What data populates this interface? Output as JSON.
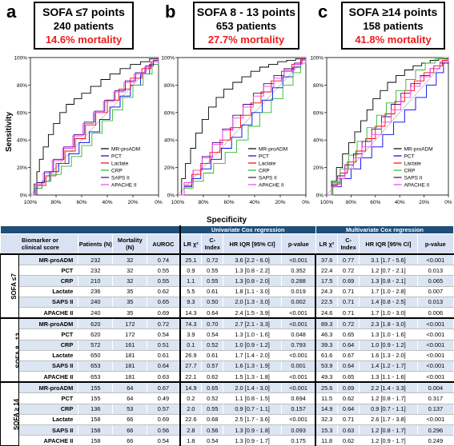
{
  "panels": [
    {
      "letter": "a",
      "title": "SOFA ≤7 points",
      "patients": "240 patients",
      "mortality": "14.6% mortality"
    },
    {
      "letter": "b",
      "title": "SOFA 8 - 13 points",
      "patients": "653 patients",
      "mortality": "27.7% mortality"
    },
    {
      "letter": "c",
      "title": "SOFA ≥14 points",
      "patients": "158 patients",
      "mortality": "41.8% mortality"
    }
  ],
  "chart_data": {
    "type": "line",
    "subtype": "roc",
    "ylabel": "Sensitivity",
    "xlabel": "Specificity",
    "x_ticks": [
      "100%",
      "80%",
      "60%",
      "40%",
      "20%",
      "0%"
    ],
    "y_ticks": [
      "0%",
      "20%",
      "40%",
      "60%",
      "80%",
      "100%"
    ],
    "xlim": [
      100,
      0
    ],
    "ylim": [
      0,
      100
    ],
    "legend_position": "bottom-right",
    "legend": [
      "MR-proADM",
      "PCT",
      "Lactate",
      "CRP",
      "SAPS II",
      "APACHE II"
    ],
    "colors": {
      "MR-proADM": "#000000",
      "PCT": "#0000ee",
      "Lactate": "#ff0000",
      "CRP": "#2db82d",
      "SAPS II": "#4b0082",
      "APACHE II": "#ee44ee"
    },
    "plots": [
      {
        "panel": "a",
        "series": [
          {
            "name": "MR-proADM",
            "specificity": [
              100,
              97,
              95,
              93,
              90,
              86,
              82,
              77,
              72,
              66,
              60,
              53,
              45,
              38,
              30,
              22,
              14,
              7,
              0
            ],
            "sensitivity": [
              0,
              8,
              17,
              26,
              35,
              44,
              52,
              60,
              66,
              70,
              74,
              79,
              84,
              88,
              92,
              95,
              97,
              99,
              100
            ]
          },
          {
            "name": "PCT",
            "specificity": [
              100,
              96,
              91,
              85,
              78,
              70,
              62,
              54,
              46,
              38,
              30,
              22,
              14,
              7,
              0
            ],
            "sensitivity": [
              0,
              5,
              10,
              17,
              23,
              30,
              38,
              46,
              55,
              64,
              72,
              80,
              88,
              95,
              100
            ]
          },
          {
            "name": "Lactate",
            "specificity": [
              100,
              95,
              88,
              80,
              73,
              65,
              57,
              49,
              40,
              31,
              22,
              13,
              6,
              0
            ],
            "sensitivity": [
              0,
              7,
              14,
              23,
              32,
              41,
              51,
              60,
              69,
              77,
              85,
              92,
              97,
              100
            ]
          },
          {
            "name": "CRP",
            "specificity": [
              100,
              96,
              91,
              84,
              76,
              68,
              60,
              52,
              44,
              36,
              28,
              20,
              12,
              5,
              0
            ],
            "sensitivity": [
              0,
              5,
              10,
              15,
              21,
              28,
              36,
              45,
              54,
              62,
              71,
              80,
              88,
              95,
              100
            ]
          },
          {
            "name": "SAPS II",
            "specificity": [
              100,
              95,
              89,
              82,
              74,
              66,
              58,
              50,
              42,
              34,
              26,
              18,
              10,
              4,
              0
            ],
            "sensitivity": [
              0,
              9,
              17,
              26,
              35,
              44,
              53,
              61,
              69,
              76,
              83,
              89,
              94,
              98,
              100
            ]
          },
          {
            "name": "APACHE II",
            "specificity": [
              100,
              96,
              90,
              83,
              75,
              67,
              59,
              51,
              43,
              35,
              27,
              19,
              11,
              5,
              0
            ],
            "sensitivity": [
              0,
              8,
              16,
              25,
              34,
              43,
              52,
              60,
              68,
              75,
              82,
              88,
              93,
              97,
              100
            ]
          }
        ]
      },
      {
        "panel": "b",
        "series": [
          {
            "name": "MR-proADM",
            "specificity": [
              100,
              97,
              94,
              90,
              86,
              81,
              76,
              70,
              64,
              57,
              50,
              43,
              36,
              29,
              22,
              15,
              8,
              0
            ],
            "sensitivity": [
              0,
              12,
              23,
              34,
              45,
              55,
              64,
              71,
              77,
              82,
              86,
              90,
              93,
              95,
              97,
              98,
              99,
              100
            ]
          },
          {
            "name": "PCT",
            "specificity": [
              100,
              95,
              89,
              82,
              74,
              66,
              58,
              50,
              42,
              34,
              26,
              18,
              10,
              4,
              0
            ],
            "sensitivity": [
              0,
              6,
              12,
              19,
              26,
              34,
              42,
              51,
              60,
              69,
              78,
              86,
              93,
              98,
              100
            ]
          },
          {
            "name": "Lactate",
            "specificity": [
              100,
              95,
              89,
              82,
              75,
              67,
              59,
              51,
              43,
              35,
              27,
              19,
              11,
              4,
              0
            ],
            "sensitivity": [
              0,
              7,
              15,
              23,
              31,
              40,
              49,
              58,
              67,
              75,
              83,
              90,
              95,
              99,
              100
            ]
          },
          {
            "name": "CRP",
            "specificity": [
              100,
              95,
              88,
              80,
              72,
              63,
              54,
              45,
              36,
              27,
              18,
              10,
              4,
              0
            ],
            "sensitivity": [
              0,
              5,
              10,
              16,
              23,
              31,
              40,
              50,
              60,
              70,
              80,
              89,
              96,
              100
            ]
          },
          {
            "name": "SAPS II",
            "specificity": [
              100,
              95,
              88,
              81,
              73,
              65,
              57,
              49,
              41,
              33,
              25,
              17,
              9,
              3,
              0
            ],
            "sensitivity": [
              0,
              9,
              18,
              28,
              38,
              48,
              58,
              66,
              74,
              81,
              87,
              92,
              96,
              99,
              100
            ]
          },
          {
            "name": "APACHE II",
            "specificity": [
              100,
              95,
              88,
              81,
              73,
              65,
              57,
              49,
              41,
              33,
              25,
              17,
              9,
              3,
              0
            ],
            "sensitivity": [
              0,
              9,
              18,
              27,
              37,
              47,
              56,
              64,
              72,
              79,
              85,
              91,
              95,
              98,
              100
            ]
          }
        ]
      },
      {
        "panel": "c",
        "series": [
          {
            "name": "MR-proADM",
            "specificity": [
              100,
              96,
              92,
              87,
              82,
              77,
              72,
              67,
              62,
              56,
              50,
              43,
              36,
              29,
              22,
              15,
              8,
              0
            ],
            "sensitivity": [
              0,
              10,
              20,
              30,
              38,
              46,
              54,
              62,
              70,
              76,
              82,
              87,
              91,
              94,
              96,
              98,
              99,
              100
            ]
          },
          {
            "name": "PCT",
            "specificity": [
              100,
              95,
              88,
              80,
              72,
              63,
              54,
              45,
              36,
              27,
              18,
              10,
              4,
              0
            ],
            "sensitivity": [
              0,
              6,
              12,
              19,
              27,
              35,
              44,
              53,
              62,
              71,
              80,
              89,
              96,
              100
            ]
          },
          {
            "name": "Lactate",
            "specificity": [
              100,
              95,
              89,
              83,
              76,
              68,
              60,
              52,
              44,
              36,
              28,
              20,
              12,
              5,
              0
            ],
            "sensitivity": [
              0,
              8,
              16,
              24,
              32,
              41,
              50,
              59,
              68,
              76,
              83,
              89,
              94,
              98,
              100
            ]
          },
          {
            "name": "CRP",
            "specificity": [
              100,
              95,
              89,
              82,
              75,
              67,
              59,
              51,
              43,
              35,
              27,
              19,
              11,
              4,
              0
            ],
            "sensitivity": [
              0,
              9,
              19,
              29,
              39,
              49,
              58,
              67,
              76,
              84,
              91,
              96,
              99,
              100,
              100
            ]
          },
          {
            "name": "SAPS II",
            "specificity": [
              100,
              96,
              91,
              85,
              78,
              71,
              63,
              55,
              47,
              39,
              31,
              23,
              15,
              7,
              0
            ],
            "sensitivity": [
              0,
              7,
              14,
              22,
              30,
              39,
              48,
              57,
              66,
              74,
              81,
              87,
              92,
              96,
              100
            ]
          },
          {
            "name": "APACHE II",
            "specificity": [
              100,
              96,
              91,
              85,
              78,
              71,
              63,
              55,
              47,
              39,
              31,
              23,
              15,
              7,
              0
            ],
            "sensitivity": [
              0,
              6,
              12,
              19,
              27,
              35,
              44,
              53,
              62,
              71,
              79,
              86,
              92,
              97,
              100
            ]
          }
        ]
      }
    ]
  },
  "table": {
    "header_univariate": "Univariate Cox regression",
    "header_multivariate": "Multivariate Cox regression",
    "col_biomarker": "Biomarker or clinical score",
    "col_patients": "Patients (N)",
    "col_mortality": "Mortality (N)",
    "col_auroc": "AUROC",
    "col_lr": "LR χ²",
    "col_cindex": "C-Index",
    "col_hr": "HR IQR [95% CI]",
    "col_p": "p-value",
    "groups": [
      {
        "label": "SOFA ≤7",
        "rows": [
          [
            "MR-proADM",
            "232",
            "32",
            "0.74",
            "25.1",
            "0.72",
            "3.6 [2.2 - 6.0]",
            "<0.001",
            "37.6",
            "0.77",
            "3.1 [1.7 - 5.6]",
            "<0.001"
          ],
          [
            "PCT",
            "232",
            "32",
            "0.55",
            "0.9",
            "0.55",
            "1.3 [0.8 - 2.2]",
            "0.352",
            "22.4",
            "0.72",
            "1.2 [0.7 - 2.1]",
            "0.013"
          ],
          [
            "CRP",
            "210",
            "32",
            "0.55",
            "1.1",
            "0.55",
            "1.3 [0.8 - 2.0]",
            "0.288",
            "17.5",
            "0.69",
            "1.3 [0.8 - 2.1]",
            "0.065"
          ],
          [
            "Lactate",
            "236",
            "35",
            "0.62",
            "5.5",
            "0.61",
            "1.8 [1.1 - 3.0]",
            "0.019",
            "24.3",
            "0.71",
            "1.7 [1.0 - 2.8]",
            "0.007"
          ],
          [
            "SAPS II",
            "240",
            "35",
            "0.65",
            "9.3",
            "0.50",
            "2.0 [1.3 - 3.0]",
            "0.002",
            "22.5",
            "0.71",
            "1.4 [0.8 - 2.5]",
            "0.013"
          ],
          [
            "APACHE II",
            "240",
            "35",
            "0.69",
            "14.3",
            "0.64",
            "2.4 [1.5 - 3.9]",
            "<0.001",
            "24.6",
            "0.71",
            "1.7 [1.0 - 3.0]",
            "0.006"
          ]
        ]
      },
      {
        "label": "SOFA 8 - 13",
        "rows": [
          [
            "MR-proADM",
            "620",
            "172",
            "0.72",
            "74.3",
            "0.70",
            "2.7 [2.1 - 3.3]",
            "<0.001",
            "89.3",
            "0.72",
            "2.3 [1.8 - 3.0]",
            "<0.001"
          ],
          [
            "PCT",
            "620",
            "172",
            "0.54",
            "3.9",
            "0.54",
            "1.3 [1.0 - 1.6]",
            "0.048",
            "46.3",
            "0.65",
            "1.3 [1.0 - 1.6]",
            "<0.001"
          ],
          [
            "CRP",
            "572",
            "161",
            "0.51",
            "0.1",
            "0.52",
            "1.0 [0.9 - 1.2]",
            "0.793",
            "39.3",
            "0.64",
            "1.0 [0.9 - 1.2]",
            "<0.001"
          ],
          [
            "Lactate",
            "650",
            "181",
            "0.61",
            "26.9",
            "0.61",
            "1.7 [1.4 - 2.0]",
            "<0.001",
            "61.6",
            "0.67",
            "1.6 [1.3 - 2.0]",
            "<0.001"
          ],
          [
            "SAPS II",
            "653",
            "181",
            "0.64",
            "27.7",
            "0.57",
            "1.6 [1.3 - 1.9]",
            "0.001",
            "53.9",
            "0.64",
            "1.4 [1.2 - 1.7]",
            "<0.001"
          ],
          [
            "APACHE II",
            "653",
            "181",
            "0.63",
            "22.1",
            "0.62",
            "1.5 [1.3 - 1.8]",
            "<0.001",
            "49.3",
            "0.65",
            "1.3 [1.1 - 1.6]",
            "<0.001"
          ]
        ]
      },
      {
        "label": "SOFA ≥ 14",
        "rows": [
          [
            "MR-proADM",
            "155",
            "64",
            "0.67",
            "14.9",
            "0.65",
            "2.0 [1.4 - 3.0]",
            "<0.001",
            "25.6",
            "0.69",
            "2.2 [1.4 - 3.3]",
            "0.004"
          ],
          [
            "PCT",
            "155",
            "64",
            "0.49",
            "0.2",
            "0.52",
            "1.1 [0.8 - 1.5]",
            "0.694",
            "11.5",
            "0.62",
            "1.2 [0.8 - 1.7]",
            "0.317"
          ],
          [
            "CRP",
            "136",
            "53",
            "0.57",
            "2.0",
            "0.55",
            "0.9 [0.7 - 1.1]",
            "0.157",
            "14.9",
            "0.64",
            "0.9 [0.7 - 1.1]",
            "0.137"
          ],
          [
            "Lactate",
            "158",
            "66",
            "0.69",
            "22.6",
            "0.68",
            "2.5 [1.7 - 3.6]",
            "<0.001",
            "32.3",
            "0.71",
            "2.6 [1.7 - 3.8]",
            "<0.001"
          ],
          [
            "SAPS II",
            "158",
            "66",
            "0.56",
            "2.8",
            "0.56",
            "1.3 [0.9 - 1.8]",
            "0.093",
            "15.3",
            "0.63",
            "1.2 [0.8 - 1.7]",
            "0.296"
          ],
          [
            "APACHE II",
            "158",
            "66",
            "0.54",
            "1.8",
            "0.54",
            "1.3 [0.9 - 1.7]",
            "0.175",
            "11.8",
            "0.62",
            "1.2 [0.9 - 1.7]",
            "0.249"
          ]
        ]
      }
    ]
  }
}
